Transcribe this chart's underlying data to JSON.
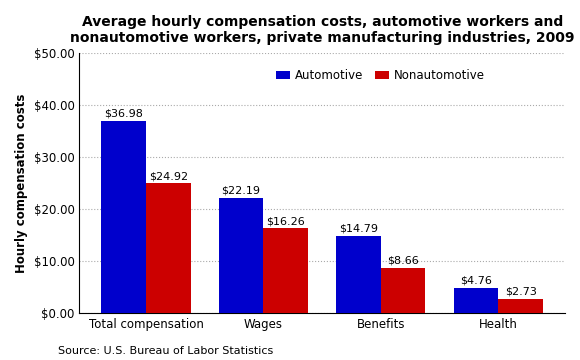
{
  "title": "Average hourly compensation costs, automotive workers and\nnonautomotive workers, private manufacturing industries, 2009",
  "categories": [
    "Total compensation",
    "Wages",
    "Benefits",
    "Health"
  ],
  "automotive": [
    36.98,
    22.19,
    14.79,
    4.76
  ],
  "nonautomotive": [
    24.92,
    16.26,
    8.66,
    2.73
  ],
  "bar_color_auto": "#0000CC",
  "bar_color_nonato": "#CC0000",
  "ylabel": "Hourly compensation costs",
  "ylim": [
    0,
    50
  ],
  "yticks": [
    0,
    10,
    20,
    30,
    40,
    50
  ],
  "legend_labels": [
    "Automotive",
    "Nonautomotive"
  ],
  "source": "Source: U.S. Bureau of Labor Statistics",
  "title_fontsize": 10,
  "label_fontsize": 8.5,
  "tick_fontsize": 8.5,
  "value_fontsize": 8,
  "source_fontsize": 8,
  "bar_width": 0.38,
  "background_color": "#FFFFFF"
}
